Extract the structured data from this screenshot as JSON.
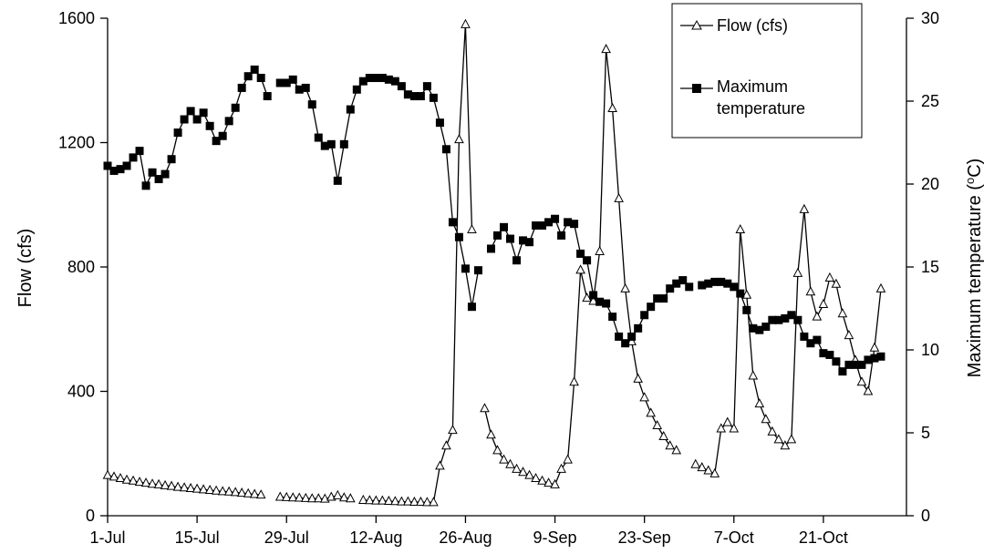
{
  "chart_data": {
    "type": "line",
    "title": "",
    "xlabel": "",
    "ylabel": "Flow (cfs)",
    "y2label": "Maximum temperature (",
    "y2label_sup": "o",
    "y2label_end": "C)",
    "x_ticks": [
      "1-Jul",
      "15-Jul",
      "29-Jul",
      "12-Aug",
      "26-Aug",
      "9-Sep",
      "23-Sep",
      "7-Oct",
      "21-Oct"
    ],
    "x_tick_days": [
      0,
      14,
      28,
      42,
      56,
      70,
      84,
      98,
      112
    ],
    "y_ticks": [
      "0",
      "400",
      "800",
      "1200",
      "1600"
    ],
    "y2_ticks": [
      "0",
      "5",
      "10",
      "15",
      "20",
      "25",
      "30"
    ],
    "ylim": [
      0,
      1600
    ],
    "y2lim": [
      0,
      30
    ],
    "grid": false,
    "legend_position": "top-right",
    "legend": {
      "flow": "Flow (cfs)",
      "temp_line1": "Maximum",
      "temp_line2": "temperature"
    },
    "series": [
      {
        "name": "Flow (cfs)",
        "axis": "left",
        "marker": "triangle",
        "segments": [
          [
            [
              0,
              130
            ],
            [
              1,
              125
            ],
            [
              2,
              120
            ],
            [
              3,
              115
            ],
            [
              4,
              112
            ],
            [
              5,
              108
            ],
            [
              6,
              105
            ],
            [
              7,
              102
            ],
            [
              8,
              100
            ],
            [
              9,
              97
            ],
            [
              10,
              95
            ],
            [
              11,
              92
            ],
            [
              12,
              90
            ],
            [
              13,
              88
            ],
            [
              14,
              86
            ],
            [
              15,
              84
            ],
            [
              16,
              82
            ],
            [
              17,
              80
            ],
            [
              18,
              78
            ],
            [
              19,
              77
            ],
            [
              20,
              75
            ],
            [
              21,
              73
            ],
            [
              22,
              71
            ],
            [
              23,
              69
            ],
            [
              24,
              67
            ]
          ],
          [
            [
              27,
              60
            ],
            [
              28,
              59
            ],
            [
              29,
              58
            ],
            [
              30,
              57
            ],
            [
              31,
              56
            ],
            [
              32,
              55
            ],
            [
              33,
              55
            ],
            [
              34,
              54
            ],
            [
              35,
              60
            ],
            [
              36,
              65
            ],
            [
              37,
              58
            ],
            [
              38,
              55
            ]
          ],
          [
            [
              40,
              50
            ],
            [
              41,
              49
            ],
            [
              42,
              48
            ],
            [
              43,
              48
            ],
            [
              44,
              47
            ],
            [
              45,
              46
            ],
            [
              46,
              45
            ],
            [
              47,
              45
            ],
            [
              48,
              44
            ],
            [
              49,
              44
            ],
            [
              50,
              43
            ],
            [
              51,
              43
            ],
            [
              52,
              160
            ],
            [
              53,
              225
            ],
            [
              54,
              275
            ],
            [
              55,
              1210
            ],
            [
              56,
              1580
            ],
            [
              57,
              920
            ]
          ],
          [
            [
              59,
              345
            ],
            [
              60,
              260
            ],
            [
              61,
              210
            ],
            [
              62,
              180
            ],
            [
              63,
              165
            ],
            [
              64,
              150
            ],
            [
              65,
              140
            ],
            [
              66,
              130
            ],
            [
              67,
              120
            ],
            [
              68,
              112
            ],
            [
              69,
              105
            ],
            [
              70,
              100
            ],
            [
              71,
              150
            ],
            [
              72,
              180
            ],
            [
              73,
              430
            ],
            [
              74,
              790
            ],
            [
              75,
              700
            ],
            [
              76,
              690
            ],
            [
              77,
              850
            ],
            [
              78,
              1500
            ],
            [
              79,
              1310
            ],
            [
              80,
              1020
            ],
            [
              81,
              730
            ],
            [
              82,
              560
            ],
            [
              83,
              440
            ],
            [
              84,
              380
            ],
            [
              85,
              330
            ],
            [
              86,
              290
            ],
            [
              87,
              255
            ],
            [
              88,
              225
            ],
            [
              89,
              210
            ]
          ],
          [
            [
              92,
              165
            ],
            [
              93,
              155
            ],
            [
              94,
              145
            ],
            [
              95,
              135
            ],
            [
              96,
              280
            ],
            [
              97,
              300
            ],
            [
              98,
              280
            ],
            [
              99,
              920
            ],
            [
              100,
              710
            ],
            [
              101,
              450
            ],
            [
              102,
              360
            ],
            [
              103,
              310
            ],
            [
              104,
              270
            ],
            [
              105,
              245
            ],
            [
              106,
              225
            ],
            [
              107,
              245
            ],
            [
              108,
              780
            ],
            [
              109,
              985
            ],
            [
              110,
              720
            ],
            [
              111,
              640
            ],
            [
              112,
              680
            ],
            [
              113,
              765
            ],
            [
              114,
              745
            ],
            [
              115,
              650
            ],
            [
              116,
              580
            ],
            [
              117,
              500
            ],
            [
              118,
              430
            ],
            [
              119,
              400
            ],
            [
              120,
              540
            ],
            [
              121,
              730
            ]
          ]
        ]
      },
      {
        "name": "Maximum temperature",
        "axis": "right",
        "marker": "square",
        "segments": [
          [
            [
              0,
              21.1
            ],
            [
              1,
              20.8
            ],
            [
              2,
              20.9
            ],
            [
              3,
              21.1
            ],
            [
              4,
              21.6
            ],
            [
              5,
              22.0
            ],
            [
              6,
              19.9
            ],
            [
              7,
              20.7
            ],
            [
              8,
              20.3
            ],
            [
              9,
              20.6
            ],
            [
              10,
              21.5
            ],
            [
              11,
              23.1
            ],
            [
              12,
              23.9
            ],
            [
              13,
              24.4
            ],
            [
              14,
              23.9
            ],
            [
              15,
              24.3
            ],
            [
              16,
              23.5
            ],
            [
              17,
              22.6
            ],
            [
              18,
              22.9
            ],
            [
              19,
              23.8
            ],
            [
              20,
              24.6
            ],
            [
              21,
              25.8
            ],
            [
              22,
              26.5
            ],
            [
              23,
              26.9
            ],
            [
              24,
              26.4
            ],
            [
              25,
              25.3
            ]
          ],
          [
            [
              27,
              26.1
            ],
            [
              28,
              26.1
            ],
            [
              29,
              26.3
            ],
            [
              30,
              25.7
            ],
            [
              31,
              25.8
            ],
            [
              32,
              24.8
            ],
            [
              33,
              22.8
            ],
            [
              34,
              22.3
            ],
            [
              35,
              22.4
            ],
            [
              36,
              20.2
            ],
            [
              37,
              22.4
            ],
            [
              38,
              24.5
            ],
            [
              39,
              25.7
            ],
            [
              40,
              26.2
            ]
          ],
          [
            [
              41,
              26.4
            ],
            [
              42,
              26.4
            ],
            [
              43,
              26.4
            ],
            [
              44,
              26.3
            ],
            [
              45,
              26.2
            ],
            [
              46,
              25.9
            ],
            [
              47,
              25.4
            ],
            [
              48,
              25.3
            ],
            [
              49,
              25.3
            ],
            [
              50,
              25.9
            ],
            [
              51,
              25.2
            ],
            [
              52,
              23.7
            ],
            [
              53,
              22.1
            ],
            [
              54,
              17.7
            ],
            [
              55,
              16.8
            ],
            [
              56,
              14.9
            ],
            [
              57,
              12.6
            ],
            [
              58,
              14.8
            ]
          ],
          [
            [
              60,
              16.1
            ],
            [
              61,
              16.9
            ],
            [
              62,
              17.4
            ],
            [
              63,
              16.7
            ],
            [
              64,
              15.4
            ],
            [
              65,
              16.6
            ],
            [
              66,
              16.5
            ],
            [
              67,
              17.5
            ],
            [
              68,
              17.5
            ],
            [
              69,
              17.7
            ],
            [
              70,
              17.9
            ],
            [
              71,
              16.9
            ],
            [
              72,
              17.7
            ],
            [
              73,
              17.6
            ],
            [
              74,
              15.8
            ],
            [
              75,
              15.4
            ],
            [
              76,
              13.3
            ],
            [
              77,
              12.9
            ],
            [
              78,
              12.8
            ],
            [
              79,
              12.0
            ],
            [
              80,
              10.8
            ],
            [
              81,
              10.4
            ],
            [
              82,
              10.8
            ],
            [
              83,
              11.3
            ],
            [
              84,
              12.1
            ],
            [
              85,
              12.6
            ],
            [
              86,
              13.1
            ],
            [
              87,
              13.1
            ],
            [
              88,
              13.7
            ],
            [
              89,
              14.0
            ],
            [
              90,
              14.2
            ],
            [
              91,
              13.8
            ]
          ],
          [
            [
              93,
              13.9
            ],
            [
              94,
              14.0
            ],
            [
              95,
              14.1
            ],
            [
              96,
              14.1
            ],
            [
              97,
              14.0
            ],
            [
              98,
              13.8
            ],
            [
              99,
              13.4
            ],
            [
              100,
              12.4
            ],
            [
              101,
              11.3
            ],
            [
              102,
              11.2
            ],
            [
              103,
              11.4
            ],
            [
              104,
              11.8
            ],
            [
              105,
              11.8
            ],
            [
              106,
              11.9
            ],
            [
              107,
              12.1
            ],
            [
              108,
              11.8
            ],
            [
              109,
              10.8
            ],
            [
              110,
              10.4
            ],
            [
              111,
              10.6
            ],
            [
              112,
              9.8
            ],
            [
              113,
              9.7
            ],
            [
              114,
              9.3
            ],
            [
              115,
              8.7
            ],
            [
              116,
              9.1
            ],
            [
              117,
              9.1
            ],
            [
              118,
              9.1
            ],
            [
              119,
              9.4
            ],
            [
              120,
              9.5
            ],
            [
              121,
              9.6
            ]
          ]
        ]
      }
    ]
  }
}
